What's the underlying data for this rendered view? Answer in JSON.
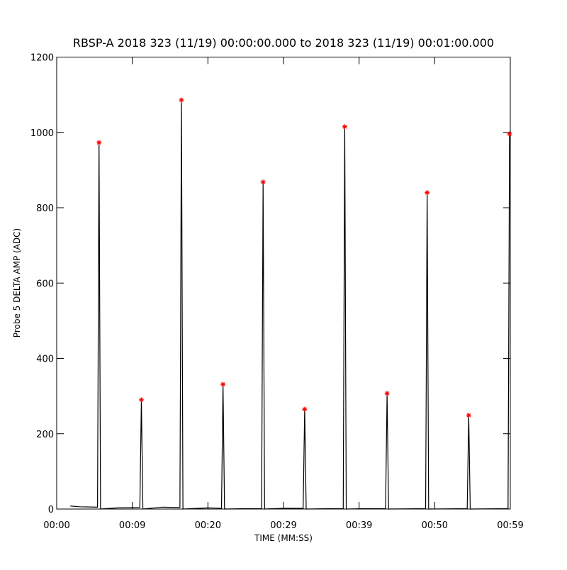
{
  "chart_data": {
    "type": "line",
    "title": "RBSP-A 2018 323 (11/19) 00:00:00.000 to 2018 323 (11/19) 00:01:00.000",
    "x_label": "TIME (MM:SS)",
    "y_label": "Probe 5 DELTA AMP (ADC)",
    "xlim": [
      0,
      60
    ],
    "ylim": [
      0,
      1200
    ],
    "xticks": [
      {
        "value": 0,
        "label": "00:00"
      },
      {
        "value": 10,
        "label": "00:09"
      },
      {
        "value": 20,
        "label": "00:20"
      },
      {
        "value": 30,
        "label": "00:29"
      },
      {
        "value": 40,
        "label": "00:39"
      },
      {
        "value": 50,
        "label": "00:50"
      },
      {
        "value": 60,
        "label": "00:59"
      }
    ],
    "yticks": [
      0,
      200,
      400,
      600,
      800,
      1000,
      1200
    ],
    "trace": {
      "color": "#000000",
      "x": [
        1.8,
        3,
        5.4,
        5.6,
        5.8,
        8,
        11.0,
        11.2,
        11.4,
        14,
        16.3,
        16.5,
        16.7,
        20,
        21.8,
        22.0,
        22.2,
        25,
        27.1,
        27.3,
        27.5,
        30,
        32.6,
        32.8,
        33.0,
        36,
        37.9,
        38.1,
        38.3,
        41,
        43.5,
        43.7,
        43.9,
        48.8,
        49.0,
        49.2,
        54.3,
        54.5,
        54.7,
        59.7,
        59.9
      ],
      "values": [
        8,
        6,
        5,
        973,
        0,
        3,
        4,
        290,
        0,
        5,
        4,
        1086,
        0,
        3,
        2,
        331,
        0,
        1,
        1,
        868,
        0,
        2,
        2,
        265,
        0,
        1,
        1,
        1015,
        0,
        1,
        1,
        307,
        0,
        1,
        840,
        0,
        1,
        249,
        0,
        1,
        996
      ]
    },
    "peaks": {
      "color": "#ff0000",
      "x": [
        5.6,
        11.2,
        16.5,
        22.0,
        27.3,
        32.8,
        38.1,
        43.7,
        49.0,
        54.5,
        59.9
      ],
      "values": [
        973,
        290,
        1086,
        331,
        868,
        265,
        1015,
        307,
        840,
        249,
        996
      ]
    }
  }
}
